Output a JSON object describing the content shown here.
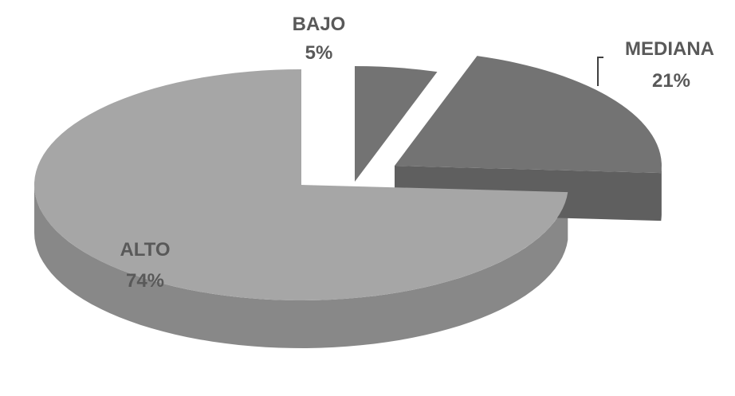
{
  "chart_data": {
    "type": "pie",
    "title": "",
    "slices": [
      {
        "label": "ALTO",
        "percent_text": "74%",
        "value": 74,
        "color": "#a6a6a6",
        "side_color": "#888888"
      },
      {
        "label": "BAJO",
        "percent_text": "5%",
        "value": 5,
        "color": "#737373",
        "side_color": "#5f5f5f"
      },
      {
        "label": "MEDIANA",
        "percent_text": "21%",
        "value": 21,
        "color": "#737373",
        "side_color": "#5f5f5f"
      }
    ],
    "exploded": [
      "BAJO",
      "MEDIANA"
    ],
    "three_d": true,
    "legend": "none",
    "data_labels": "category-and-percent"
  }
}
